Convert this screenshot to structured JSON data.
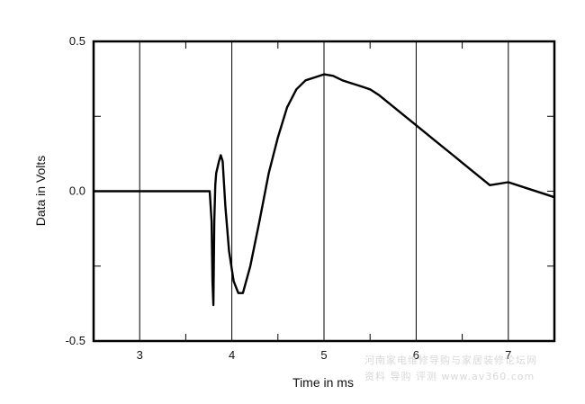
{
  "chart_data": {
    "type": "line",
    "title": "",
    "xlabel": "Time in ms",
    "ylabel": "Data in Volts",
    "xlim": [
      2.5,
      7.5
    ],
    "ylim": [
      -0.5,
      0.5
    ],
    "grid": true,
    "x_ticks": [
      3,
      4,
      5,
      6,
      7
    ],
    "x_tick_labels": [
      "3",
      "4",
      "5",
      "6",
      "7"
    ],
    "y_ticks": [
      0.5,
      0.0,
      -0.5
    ],
    "y_tick_labels": [
      "0.5",
      "0.0",
      "-0.5"
    ],
    "series": [
      {
        "color": "#000000",
        "x": [
          2.5,
          3.0,
          3.5,
          3.72,
          3.76,
          3.78,
          3.79,
          3.8,
          3.81,
          3.82,
          3.83,
          3.86,
          3.88,
          3.9,
          3.93,
          3.97,
          4.02,
          4.07,
          4.12,
          4.2,
          4.3,
          4.4,
          4.5,
          4.6,
          4.7,
          4.8,
          4.9,
          5.0,
          5.1,
          5.2,
          5.3,
          5.4,
          5.5,
          5.6,
          5.8,
          6.0,
          6.2,
          6.4,
          6.6,
          6.8,
          7.0,
          7.2,
          7.4,
          7.5
        ],
        "y": [
          0.0,
          0.0,
          0.0,
          0.0,
          0.0,
          -0.1,
          -0.3,
          -0.38,
          -0.1,
          0.02,
          0.06,
          0.1,
          0.12,
          0.1,
          -0.05,
          -0.2,
          -0.3,
          -0.34,
          -0.34,
          -0.25,
          -0.1,
          0.06,
          0.18,
          0.28,
          0.34,
          0.37,
          0.38,
          0.39,
          0.385,
          0.37,
          0.36,
          0.35,
          0.34,
          0.32,
          0.27,
          0.22,
          0.17,
          0.12,
          0.07,
          0.02,
          0.03,
          0.01,
          -0.01,
          -0.02
        ]
      }
    ]
  },
  "watermark": {
    "line1": "河南家电维修导购与家居装修论坛网",
    "line2": "资料 导购 评测 www.av360.com"
  }
}
